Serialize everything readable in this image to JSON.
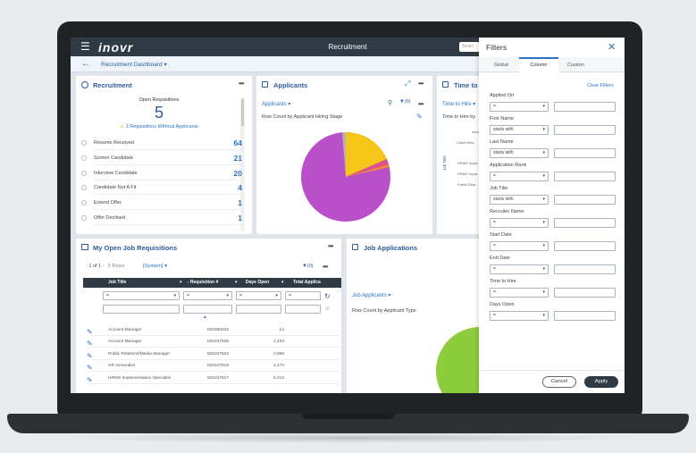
{
  "app": {
    "title": "Recruitment",
    "logo": "inovr",
    "menu_icon": "☰",
    "search_placeholder": "Searc"
  },
  "subnav": {
    "back_icon": "←",
    "dashboard_label": "Recruitment Dashboard ▾"
  },
  "recruitment_card": {
    "title": "Recruitment",
    "open_req_label": "Open Requisitions",
    "open_req_value": "5",
    "warning_text": "1 Requisitions Without Applicants",
    "stats": [
      {
        "label": "Resume Received",
        "value": "64"
      },
      {
        "label": "Screen Candidate",
        "value": "21"
      },
      {
        "label": "Interview Candidate",
        "value": "20"
      },
      {
        "label": "Candidate Not A Fit",
        "value": "4"
      },
      {
        "label": "Extend Offer",
        "value": "1"
      },
      {
        "label": "Offer Declined",
        "value": "1"
      }
    ]
  },
  "applicants_card": {
    "title": "Applicants",
    "dropdown": "Applicants ▾",
    "filter_count": "(0)",
    "subtitle": "Row Count by Applicant Hiring Stage",
    "pie_colors": [
      "#b94fc9",
      "#f5c518",
      "#e0528c",
      "#f08a3c",
      "#b3b3b3"
    ]
  },
  "time_to_hire_card": {
    "title": "Time to H",
    "dropdown": "Time to Hire ▾",
    "subtitle": "Time to Hire by",
    "axis_label": "Job Title",
    "cut_labels": [
      "Acco",
      "Client Rela",
      "HRMS Imple",
      "HRMS Imple",
      "Public Rela"
    ]
  },
  "job_req_card": {
    "title": "My Open Job Requisitions",
    "pager": "1 of 1",
    "rows_label": "5 Rows",
    "view": "[System] ▾",
    "filter_count": "(0)",
    "columns": [
      "Job Title",
      "↓ Requisition #",
      "Days Open",
      "Total Applica"
    ],
    "filter_default": "=",
    "rows": [
      {
        "job": "Account Manager",
        "req": "520260032",
        "days": "14"
      },
      {
        "job": "Account Manager",
        "req": "520247625",
        "days": "1,233"
      },
      {
        "job": "Public Relations/Media Manager",
        "req": "520247623",
        "days": "2,896"
      },
      {
        "job": "HR Generalist",
        "req": "520247618",
        "days": "4,170"
      },
      {
        "job": "HRMS Implementation Specialist",
        "req": "520247617",
        "days": "4,212"
      }
    ]
  },
  "job_apps_card": {
    "title": "Job Applications",
    "dropdown": "Job Applicants ▾",
    "subtitle": "Row Count by Applicant Type"
  },
  "filters": {
    "title": "Filters",
    "tabs": [
      "Global",
      "Column",
      "Custom"
    ],
    "active_tab": "Column",
    "clear": "Clear Filters",
    "fields": [
      {
        "label": "Applied On",
        "op": "="
      },
      {
        "label": "First Name",
        "op": "starts with"
      },
      {
        "label": "Last Name",
        "op": "starts with"
      },
      {
        "label": "Application Rank",
        "op": "="
      },
      {
        "label": "Job Title",
        "op": "starts with"
      },
      {
        "label": "Recruiter Name",
        "op": "="
      },
      {
        "label": "Start Date",
        "op": "="
      },
      {
        "label": "End Date",
        "op": "="
      },
      {
        "label": "Time to Hire",
        "op": "="
      },
      {
        "label": "Days Open",
        "op": "="
      }
    ],
    "cancel": "Cancel",
    "apply": "Apply"
  }
}
